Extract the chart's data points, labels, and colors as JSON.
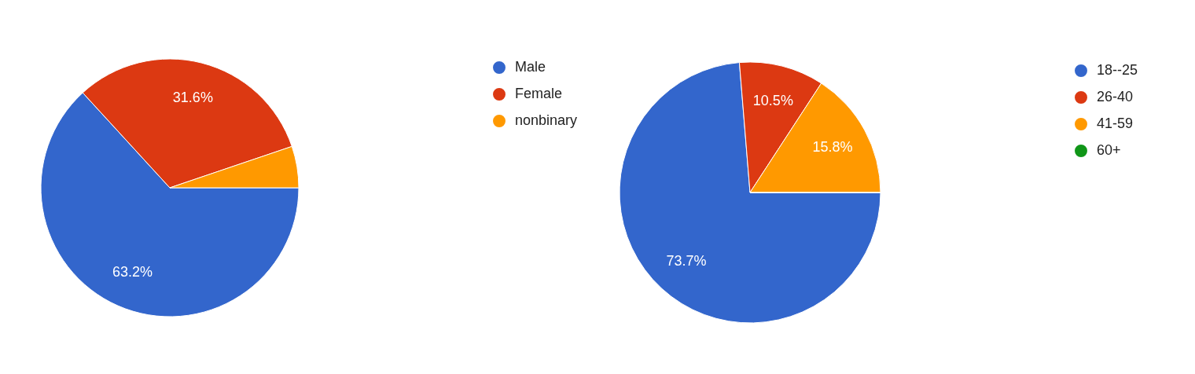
{
  "chart_data": [
    {
      "type": "pie",
      "categories": [
        "Male",
        "Female",
        "nonbinary"
      ],
      "values": [
        63.2,
        31.6,
        5.2
      ],
      "colors": [
        "#3366cc",
        "#dc3912",
        "#ff9900"
      ],
      "value_labels": [
        "63.2%",
        "31.6%",
        null
      ],
      "legend": "top right"
    },
    {
      "type": "pie",
      "categories": [
        "18--25",
        "26-40",
        "41-59",
        "60+"
      ],
      "values": [
        73.7,
        10.5,
        15.8,
        0
      ],
      "colors": [
        "#3366cc",
        "#dc3912",
        "#ff9900",
        "#109618"
      ],
      "value_labels": [
        "73.7%",
        "10.5%",
        "15.8%",
        null
      ],
      "legend": "top right"
    }
  ]
}
